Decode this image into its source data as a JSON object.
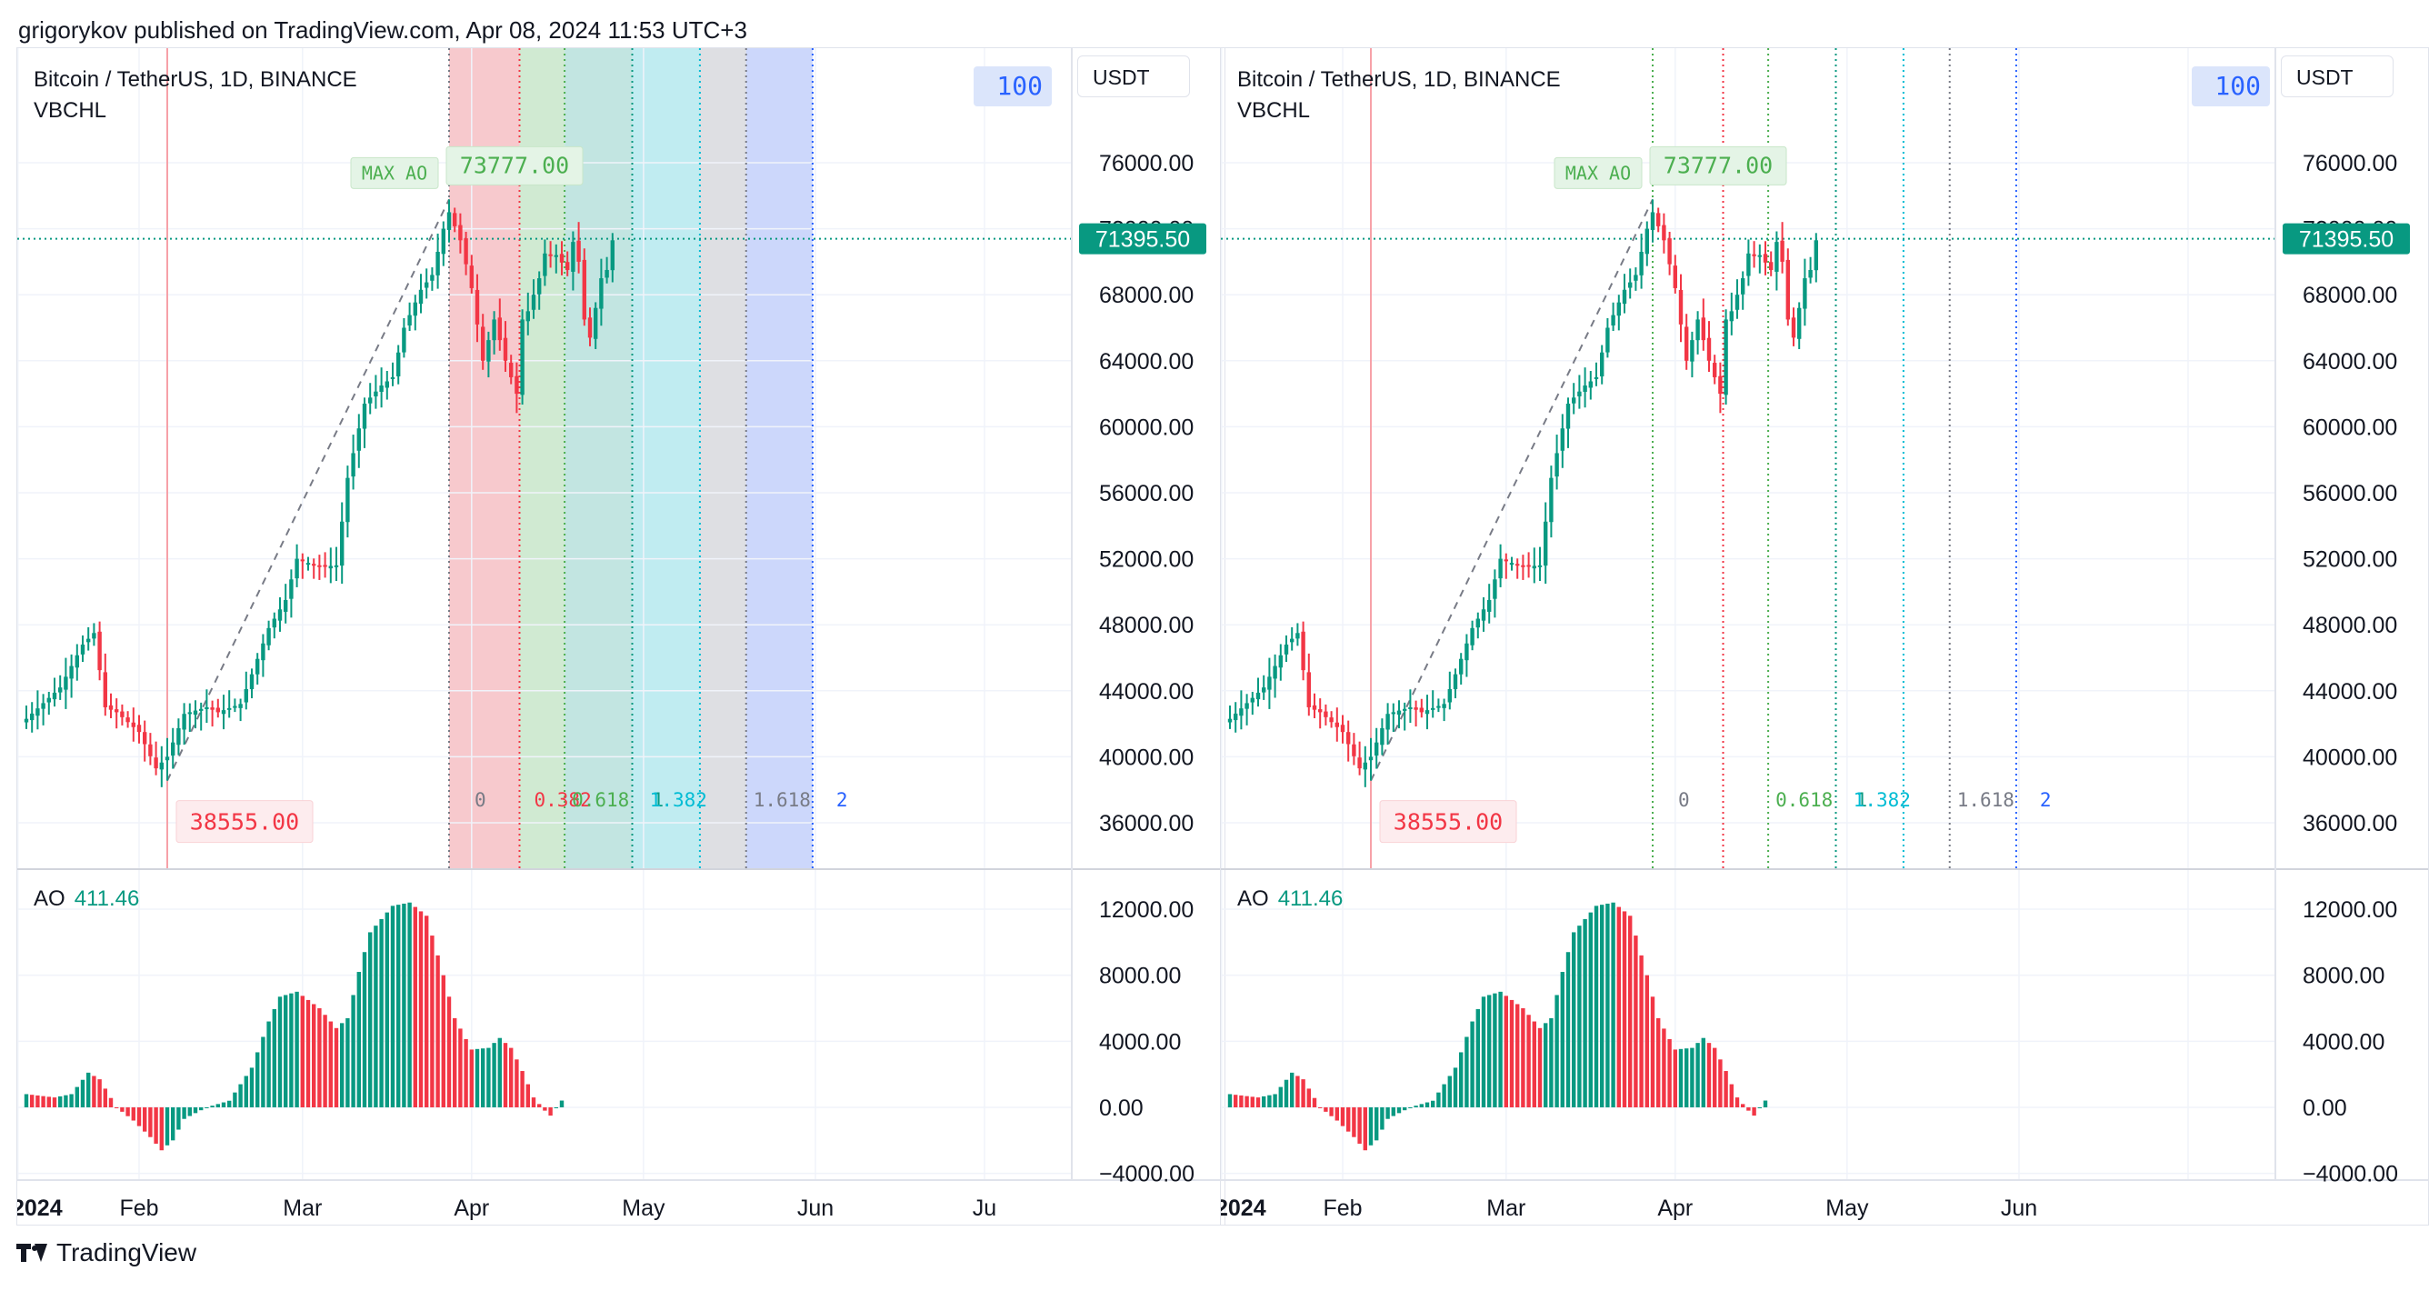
{
  "header": {
    "text": "grigorykov published on TradingView.com, Apr 08, 2024 11:53 UTC+3"
  },
  "footer": {
    "brand": "TradingView"
  },
  "colors": {
    "up": "#089981",
    "down": "#f23645",
    "accent": "#2962ff"
  },
  "panels": [
    {
      "symbol": "Bitcoin / TetherUS, 1D, BINANCE",
      "indicator": "VBCHL",
      "currency": "USDT",
      "badge": "100",
      "max_label": "MAX AO",
      "max_price": "73777.00",
      "min_price": "38555.00",
      "last_price": "71395.50",
      "ao_label": "AO",
      "ao_value": "411.46",
      "shaded": true
    },
    {
      "symbol": "Bitcoin / TetherUS, 1D, BINANCE",
      "indicator": "VBCHL",
      "currency": "USDT",
      "badge": "100",
      "max_label": "MAX AO",
      "max_price": "73777.00",
      "min_price": "38555.00",
      "last_price": "71395.50",
      "ao_label": "AO",
      "ao_value": "411.46",
      "shaded": false
    }
  ],
  "chart_data": {
    "type": "candlestick",
    "title": "Bitcoin / TetherUS, 1D, BINANCE",
    "price_axis": {
      "ylim": [
        33500,
        78000
      ],
      "ticks": [
        "76000.00",
        "72000.00",
        "68000.00",
        "64000.00",
        "60000.00",
        "56000.00",
        "52000.00",
        "48000.00",
        "44000.00",
        "40000.00",
        "36000.00"
      ]
    },
    "ao_axis": {
      "ylim": [
        -4600,
        13800
      ],
      "ticks": [
        "12000.00",
        "8000.00",
        "4000.00",
        "0.00",
        "−4000.00"
      ]
    },
    "x_labels": [
      "2024",
      "Feb",
      "Mar",
      "Apr",
      "May",
      "Jun",
      "Ju"
    ],
    "x_labels_right": [
      "2024",
      "Feb",
      "Mar",
      "Apr",
      "May",
      "Jun"
    ],
    "close_anchors": [
      [
        0,
        42300
      ],
      [
        6,
        44200
      ],
      [
        10,
        46800
      ],
      [
        12,
        47500
      ],
      [
        14,
        43000
      ],
      [
        16,
        42700
      ],
      [
        20,
        41500
      ],
      [
        23,
        39300
      ],
      [
        25,
        40000
      ],
      [
        28,
        42600
      ],
      [
        32,
        43000
      ],
      [
        34,
        42700
      ],
      [
        38,
        43200
      ],
      [
        40,
        45000
      ],
      [
        43,
        47800
      ],
      [
        46,
        49500
      ],
      [
        48,
        52000
      ],
      [
        52,
        51500
      ],
      [
        55,
        51600
      ],
      [
        57,
        56900
      ],
      [
        60,
        61400
      ],
      [
        63,
        62500
      ],
      [
        65,
        63000
      ],
      [
        67,
        66000
      ],
      [
        70,
        68300
      ],
      [
        72,
        69200
      ],
      [
        74,
        72000
      ],
      [
        75,
        73000
      ],
      [
        77,
        71300
      ],
      [
        79,
        68400
      ],
      [
        81,
        64000
      ],
      [
        83,
        66500
      ],
      [
        85,
        64000
      ],
      [
        87,
        62000
      ],
      [
        88,
        66500
      ],
      [
        89,
        67000
      ],
      [
        91,
        69000
      ],
      [
        92,
        70500
      ],
      [
        94,
        70400
      ],
      [
        96,
        69500
      ],
      [
        97,
        71200
      ],
      [
        98,
        70000
      ],
      [
        99,
        66500
      ],
      [
        100,
        65400
      ],
      [
        101,
        67200
      ],
      [
        102,
        69000
      ],
      [
        103,
        69500
      ],
      [
        104,
        71300
      ]
    ],
    "ao_anchors": [
      [
        0,
        800
      ],
      [
        5,
        600
      ],
      [
        8,
        800
      ],
      [
        11,
        2100
      ],
      [
        13,
        1700
      ],
      [
        16,
        0
      ],
      [
        19,
        -800
      ],
      [
        22,
        -1800
      ],
      [
        24,
        -2600
      ],
      [
        26,
        -2000
      ],
      [
        28,
        -700
      ],
      [
        32,
        0
      ],
      [
        36,
        400
      ],
      [
        40,
        2400
      ],
      [
        43,
        5200
      ],
      [
        45,
        6700
      ],
      [
        48,
        7000
      ],
      [
        52,
        6000
      ],
      [
        55,
        4800
      ],
      [
        57,
        5400
      ],
      [
        59,
        8200
      ],
      [
        61,
        10600
      ],
      [
        65,
        12200
      ],
      [
        68,
        12400
      ],
      [
        71,
        11600
      ],
      [
        74,
        8000
      ],
      [
        76,
        5400
      ],
      [
        79,
        3500
      ],
      [
        82,
        3600
      ],
      [
        84,
        4200
      ],
      [
        86,
        3600
      ],
      [
        88,
        2200
      ],
      [
        90,
        600
      ],
      [
        92,
        -200
      ],
      [
        93,
        -500
      ],
      [
        94,
        0
      ],
      [
        95,
        411
      ]
    ],
    "extremes": {
      "max": 73777.0,
      "min": 38555.0,
      "max_bar": 75,
      "min_bar": 25
    },
    "last_price": 71395.5,
    "fib_levels": [
      {
        "label": "0",
        "color": "#787b86"
      },
      {
        "label": "0.382",
        "color": "#f23645"
      },
      {
        "label": "0.618",
        "color": "#4caf50"
      },
      {
        "label": "1",
        "color": "#089981"
      },
      {
        "label": "1.382",
        "color": "#00bcd4"
      },
      {
        "label": "1.618",
        "color": "#787b86"
      },
      {
        "label": "2",
        "color": "#2962ff"
      }
    ],
    "fib_zone_colors": [
      "#f7c6ca",
      "#cde9d0",
      "#bfe4df",
      "#bdebf0",
      "#dcdde1",
      "#c9d5fb"
    ]
  }
}
